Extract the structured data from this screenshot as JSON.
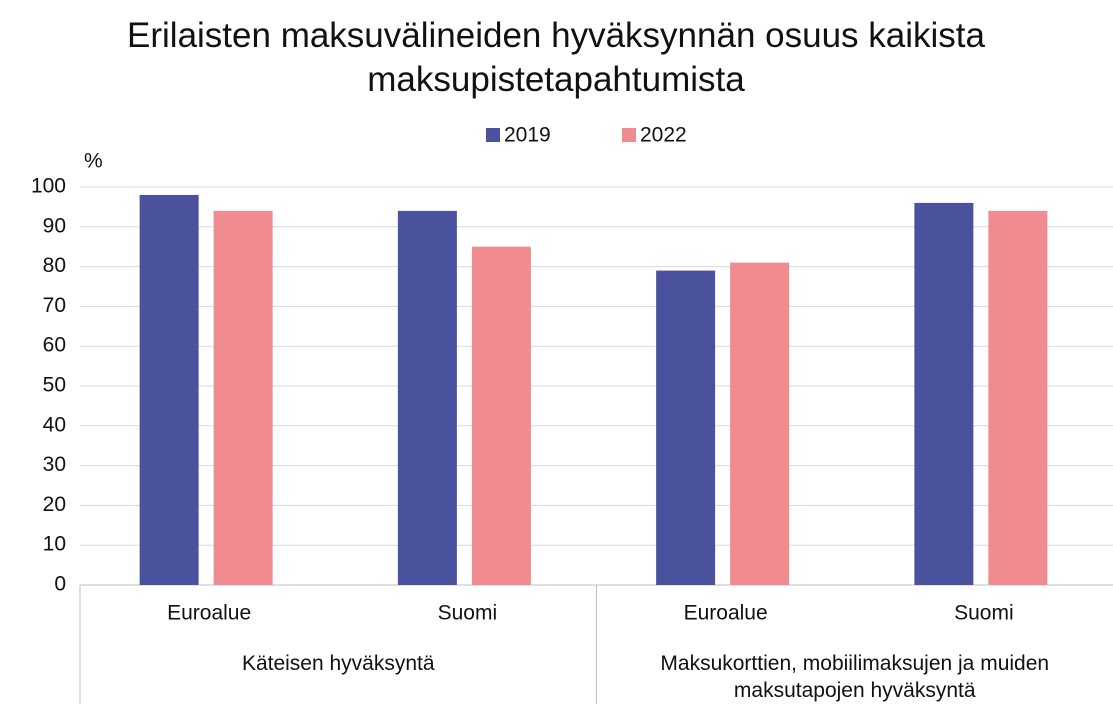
{
  "chart_data": {
    "type": "bar",
    "title": "Erilaisten maksuvälineiden hyväksynnän osuus kaikista maksupistetapahtumista",
    "y_label": "%",
    "categories": [
      "Euroalue",
      "Suomi",
      "Euroalue",
      "Suomi"
    ],
    "groups": [
      {
        "label": "Käteisen hyväksyntä",
        "size": 2
      },
      {
        "label": "Maksukorttien, mobiilimaksujen ja muiden maksutapojen hyväksyntä",
        "size": 2
      }
    ],
    "series": [
      {
        "name": "2019",
        "color": "#4b529d",
        "values": [
          98,
          94,
          79,
          96
        ]
      },
      {
        "name": "2022",
        "color": "#f08b90",
        "values": [
          94,
          85,
          81,
          94
        ]
      }
    ],
    "ylim": [
      0,
      100
    ],
    "yticks": [
      0,
      10,
      20,
      30,
      40,
      50,
      60,
      70,
      80,
      90,
      100
    ],
    "grid": true,
    "legend": "top"
  }
}
